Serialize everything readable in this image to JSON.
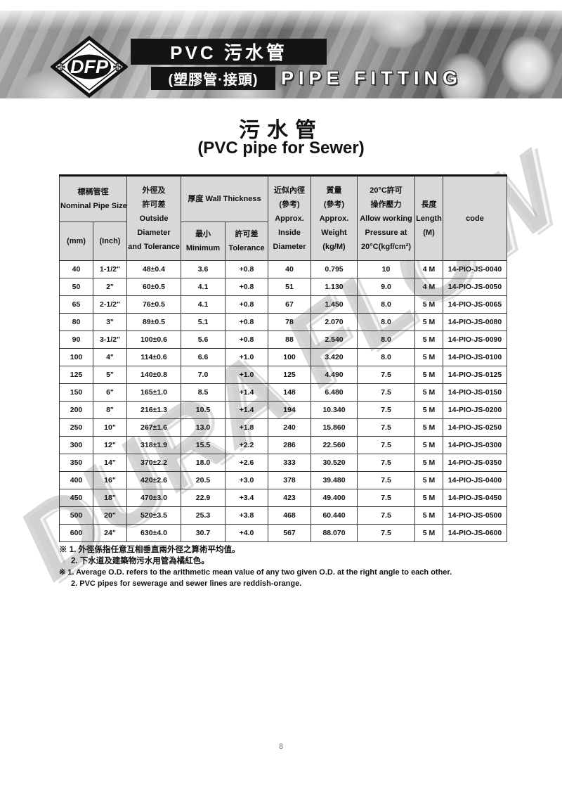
{
  "banner": {
    "logo": "DFP",
    "logo_plus": "+",
    "title": "PVC 污水管",
    "subtitle_zh": "(塑膠管·接頭)",
    "subtitle_en": "PIPE FITTING"
  },
  "heading": {
    "zh": "污水管",
    "en": "(PVC pipe for Sewer)"
  },
  "watermark": "DURA FLOW",
  "colors": {
    "header_cell_bg": "#d8d8d8",
    "banner_bar": "#141414",
    "watermark_gray": "#969696"
  },
  "table": {
    "headers": {
      "nominal": {
        "zh": "標稱管徑",
        "en": "Nominal Pipe Size",
        "mm": "(mm)",
        "inch": "(Inch)"
      },
      "outside": [
        "外徑及",
        "許可差",
        "Outside",
        "Diameter",
        "and Tolerance"
      ],
      "thickness": {
        "group": "厚度 Wall Thickness",
        "min_zh": "最小",
        "min_en": "Minimum",
        "tol_zh": "許可差",
        "tol_en": "Tolerance"
      },
      "inside": [
        "近似內徑",
        "(參考)",
        "Approx.",
        "Inside",
        "Diameter"
      ],
      "weight": [
        "質量",
        "(參考)",
        "Approx.",
        "Weight",
        "(kg/M)"
      ],
      "pressure": [
        "20°C許可",
        "操作壓力",
        "Allow working",
        "Pressure at",
        "20°C(kgf/cm²)"
      ],
      "length": [
        "長度",
        "Length",
        "(M)"
      ],
      "code": "code"
    },
    "rows": [
      [
        "40",
        "1-1/2\"",
        "48±0.4",
        "3.6",
        "+0.8",
        "40",
        "0.795",
        "10",
        "4 M",
        "14-PIO-JS-0040"
      ],
      [
        "50",
        "2\"",
        "60±0.5",
        "4.1",
        "+0.8",
        "51",
        "1.130",
        "9.0",
        "4 M",
        "14-PIO-JS-0050"
      ],
      [
        "65",
        "2-1/2\"",
        "76±0.5",
        "4.1",
        "+0.8",
        "67",
        "1.450",
        "8.0",
        "5 M",
        "14-PIO-JS-0065"
      ],
      [
        "80",
        "3\"",
        "89±0.5",
        "5.1",
        "+0.8",
        "78",
        "2.070",
        "8.0",
        "5 M",
        "14-PIO-JS-0080"
      ],
      [
        "90",
        "3-1/2\"",
        "100±0.6",
        "5.6",
        "+0.8",
        "88",
        "2.540",
        "8.0",
        "5 M",
        "14-PIO-JS-0090"
      ],
      [
        "100",
        "4\"",
        "114±0.6",
        "6.6",
        "+1.0",
        "100",
        "3.420",
        "8.0",
        "5 M",
        "14-PIO-JS-0100"
      ],
      [
        "125",
        "5\"",
        "140±0.8",
        "7.0",
        "+1.0",
        "125",
        "4.490",
        "7.5",
        "5 M",
        "14-PIO-JS-0125"
      ],
      [
        "150",
        "6\"",
        "165±1.0",
        "8.5",
        "+1.4",
        "148",
        "6.480",
        "7.5",
        "5 M",
        "14-PIO-JS-0150"
      ],
      [
        "200",
        "8\"",
        "216±1.3",
        "10.5",
        "+1.4",
        "194",
        "10.340",
        "7.5",
        "5 M",
        "14-PIO-JS-0200"
      ],
      [
        "250",
        "10\"",
        "267±1.6",
        "13.0",
        "+1.8",
        "240",
        "15.860",
        "7.5",
        "5 M",
        "14-PIO-JS-0250"
      ],
      [
        "300",
        "12\"",
        "318±1.9",
        "15.5",
        "+2.2",
        "286",
        "22.560",
        "7.5",
        "5 M",
        "14-PIO-JS-0300"
      ],
      [
        "350",
        "14\"",
        "370±2.2",
        "18.0",
        "+2.6",
        "333",
        "30.520",
        "7.5",
        "5 M",
        "14-PIO-JS-0350"
      ],
      [
        "400",
        "16\"",
        "420±2.6",
        "20.5",
        "+3.0",
        "378",
        "39.480",
        "7.5",
        "5 M",
        "14-PIO-JS-0400"
      ],
      [
        "450",
        "18\"",
        "470±3.0",
        "22.9",
        "+3.4",
        "423",
        "49.400",
        "7.5",
        "5 M",
        "14-PIO-JS-0450"
      ],
      [
        "500",
        "20\"",
        "520±3.5",
        "25.3",
        "+3.8",
        "468",
        "60.440",
        "7.5",
        "5 M",
        "14-PIO-JS-0500"
      ],
      [
        "600",
        "24\"",
        "630±4.0",
        "30.7",
        "+4.0",
        "567",
        "88.070",
        "7.5",
        "5 M",
        "14-PIO-JS-0600"
      ]
    ]
  },
  "footnotes": {
    "zh1": "※ 1. 外徑係指任意互相垂直兩外徑之算術平均值。",
    "zh2": "2. 下水道及建築物污水用管為橘紅色。",
    "en1": "※ 1. Average O.D. refers to the arithmetic mean value of any two given O.D. at the right angle to each other.",
    "en2": "2. PVC pipes for sewerage and sewer lines are reddish-orange."
  },
  "page_number": "8"
}
